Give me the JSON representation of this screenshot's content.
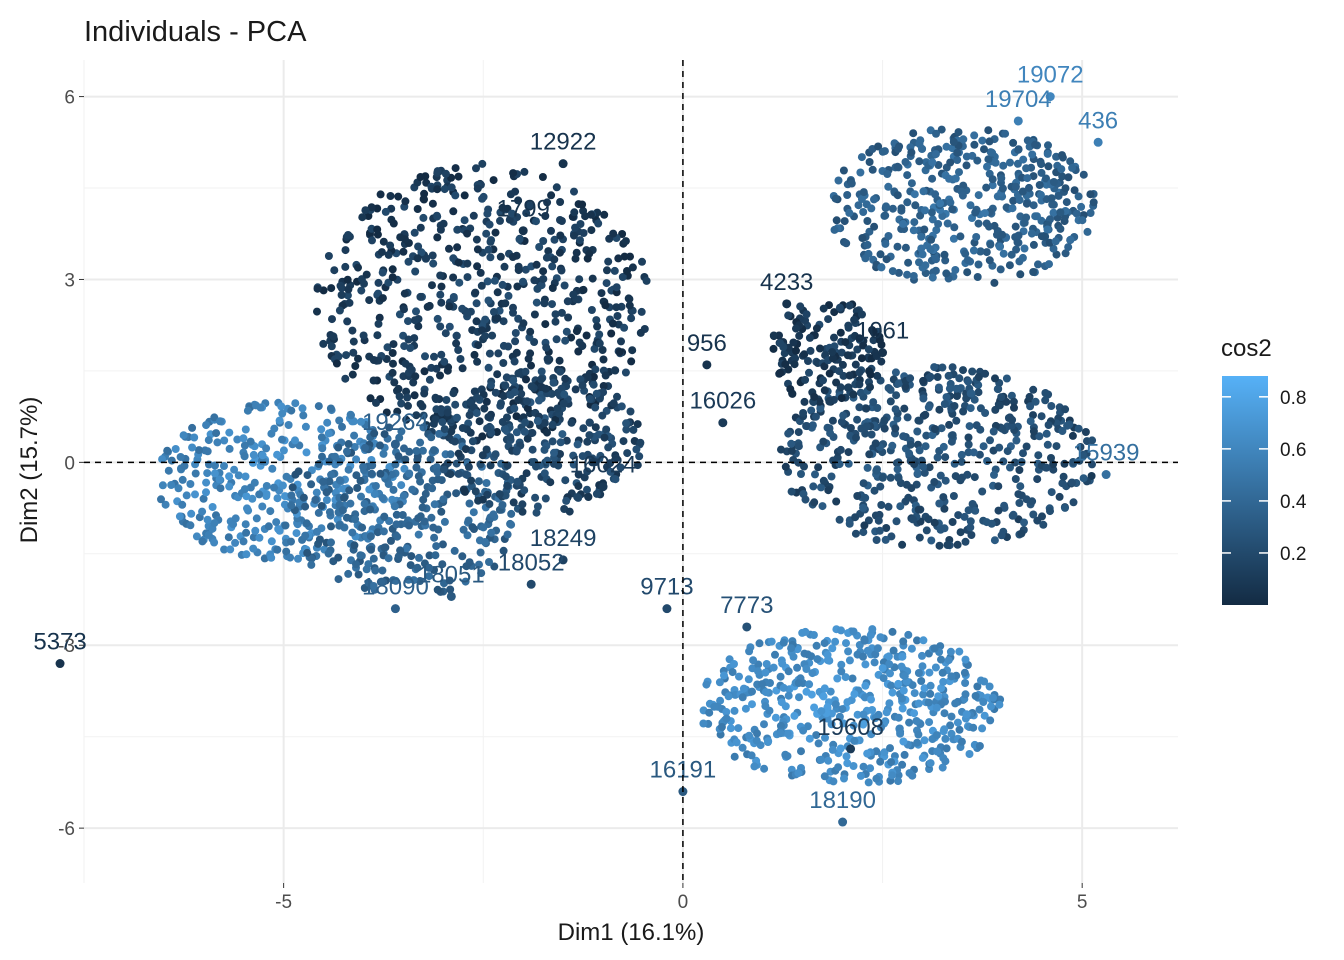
{
  "chart_data": {
    "type": "scatter",
    "title": "Individuals - PCA",
    "xlabel": "Dim1 (16.1%)",
    "ylabel": "Dim2 (15.7%)",
    "xlim": [
      -7.5,
      6.2
    ],
    "ylim": [
      -6.9,
      6.6
    ],
    "x_ticks": [
      -5,
      0,
      5
    ],
    "x_tick_labels": [
      "-5",
      "0",
      "5"
    ],
    "y_ticks": [
      -6,
      -3,
      0,
      3,
      6
    ],
    "y_tick_labels": [
      "-6",
      "-3",
      "0",
      "3",
      "6"
    ],
    "grid": true,
    "reference_lines": {
      "x": 0,
      "y": 0,
      "style": "dashed"
    },
    "color_variable": "cos2",
    "legend": {
      "title": "cos2",
      "placement": "right",
      "ticks": [
        0.2,
        0.4,
        0.6,
        0.8
      ],
      "tick_labels": [
        "0.2",
        "0.4",
        "0.6",
        "0.8"
      ],
      "range": [
        0.0,
        0.88
      ],
      "low_color": "#132B43",
      "high_color": "#56B1F7"
    },
    "clusters": [
      {
        "cx": -2.5,
        "cy": 2.6,
        "rx": 2.1,
        "ry": 2.3,
        "cos2_mean": 0.08,
        "n": 700
      },
      {
        "cx": -5.0,
        "cy": -0.3,
        "rx": 1.6,
        "ry": 1.3,
        "cos2_mean": 0.55,
        "n": 360
      },
      {
        "cx": -3.5,
        "cy": -0.8,
        "rx": 1.5,
        "ry": 1.4,
        "cos2_mean": 0.35,
        "n": 320
      },
      {
        "cx": -1.8,
        "cy": 0.3,
        "rx": 1.3,
        "ry": 1.2,
        "cos2_mean": 0.15,
        "n": 260
      },
      {
        "cx": 3.5,
        "cy": 4.2,
        "rx": 1.7,
        "ry": 1.3,
        "cos2_mean": 0.33,
        "n": 460
      },
      {
        "cx": 3.2,
        "cy": 0.1,
        "rx": 2.0,
        "ry": 1.5,
        "cos2_mean": 0.2,
        "n": 520
      },
      {
        "cx": 1.8,
        "cy": 1.8,
        "rx": 0.7,
        "ry": 0.9,
        "cos2_mean": 0.06,
        "n": 160
      },
      {
        "cx": 2.1,
        "cy": -4.0,
        "rx": 1.9,
        "ry": 1.3,
        "cos2_mean": 0.6,
        "n": 520
      }
    ],
    "labeled_points": [
      {
        "label": "5373",
        "x": -7.8,
        "y": -3.3,
        "cos2": 0.05
      },
      {
        "label": "19072",
        "x": 4.6,
        "y": 6.0,
        "cos2": 0.6
      },
      {
        "label": "19704",
        "x": 4.2,
        "y": 5.6,
        "cos2": 0.55
      },
      {
        "label": "436",
        "x": 5.2,
        "y": 5.25,
        "cos2": 0.55
      },
      {
        "label": "12922",
        "x": -1.5,
        "y": 4.9,
        "cos2": 0.05
      },
      {
        "label": "1799",
        "x": -2.0,
        "y": 3.8,
        "cos2": 0.05
      },
      {
        "label": "4233",
        "x": 1.3,
        "y": 2.6,
        "cos2": 0.05
      },
      {
        "label": "1061",
        "x": 2.5,
        "y": 1.8,
        "cos2": 0.05
      },
      {
        "label": "956",
        "x": 0.3,
        "y": 1.6,
        "cos2": 0.05
      },
      {
        "label": "16026",
        "x": 0.5,
        "y": 0.65,
        "cos2": 0.1
      },
      {
        "label": "16024",
        "x": -1.0,
        "y": -0.4,
        "cos2": 0.1
      },
      {
        "label": "19264",
        "x": -3.6,
        "y": 0.3,
        "cos2": 0.35
      },
      {
        "label": "15939",
        "x": 5.3,
        "y": -0.2,
        "cos2": 0.45
      },
      {
        "label": "18249",
        "x": -1.5,
        "y": -1.6,
        "cos2": 0.15
      },
      {
        "label": "18052",
        "x": -1.9,
        "y": -2.0,
        "cos2": 0.2
      },
      {
        "label": "18051",
        "x": -2.9,
        "y": -2.2,
        "cos2": 0.3
      },
      {
        "label": "18090",
        "x": -3.6,
        "y": -2.4,
        "cos2": 0.35
      },
      {
        "label": "19608",
        "x": 2.1,
        "y": -4.7,
        "cos2": 0.1
      },
      {
        "label": "16191",
        "x": 0.0,
        "y": -5.4,
        "cos2": 0.3
      },
      {
        "label": "18190",
        "x": 2.0,
        "y": -5.9,
        "cos2": 0.4
      },
      {
        "label": "9713",
        "x": -0.2,
        "y": -2.4,
        "cos2": 0.2
      },
      {
        "label": "7773",
        "x": 0.8,
        "y": -2.7,
        "cos2": 0.25
      }
    ]
  }
}
